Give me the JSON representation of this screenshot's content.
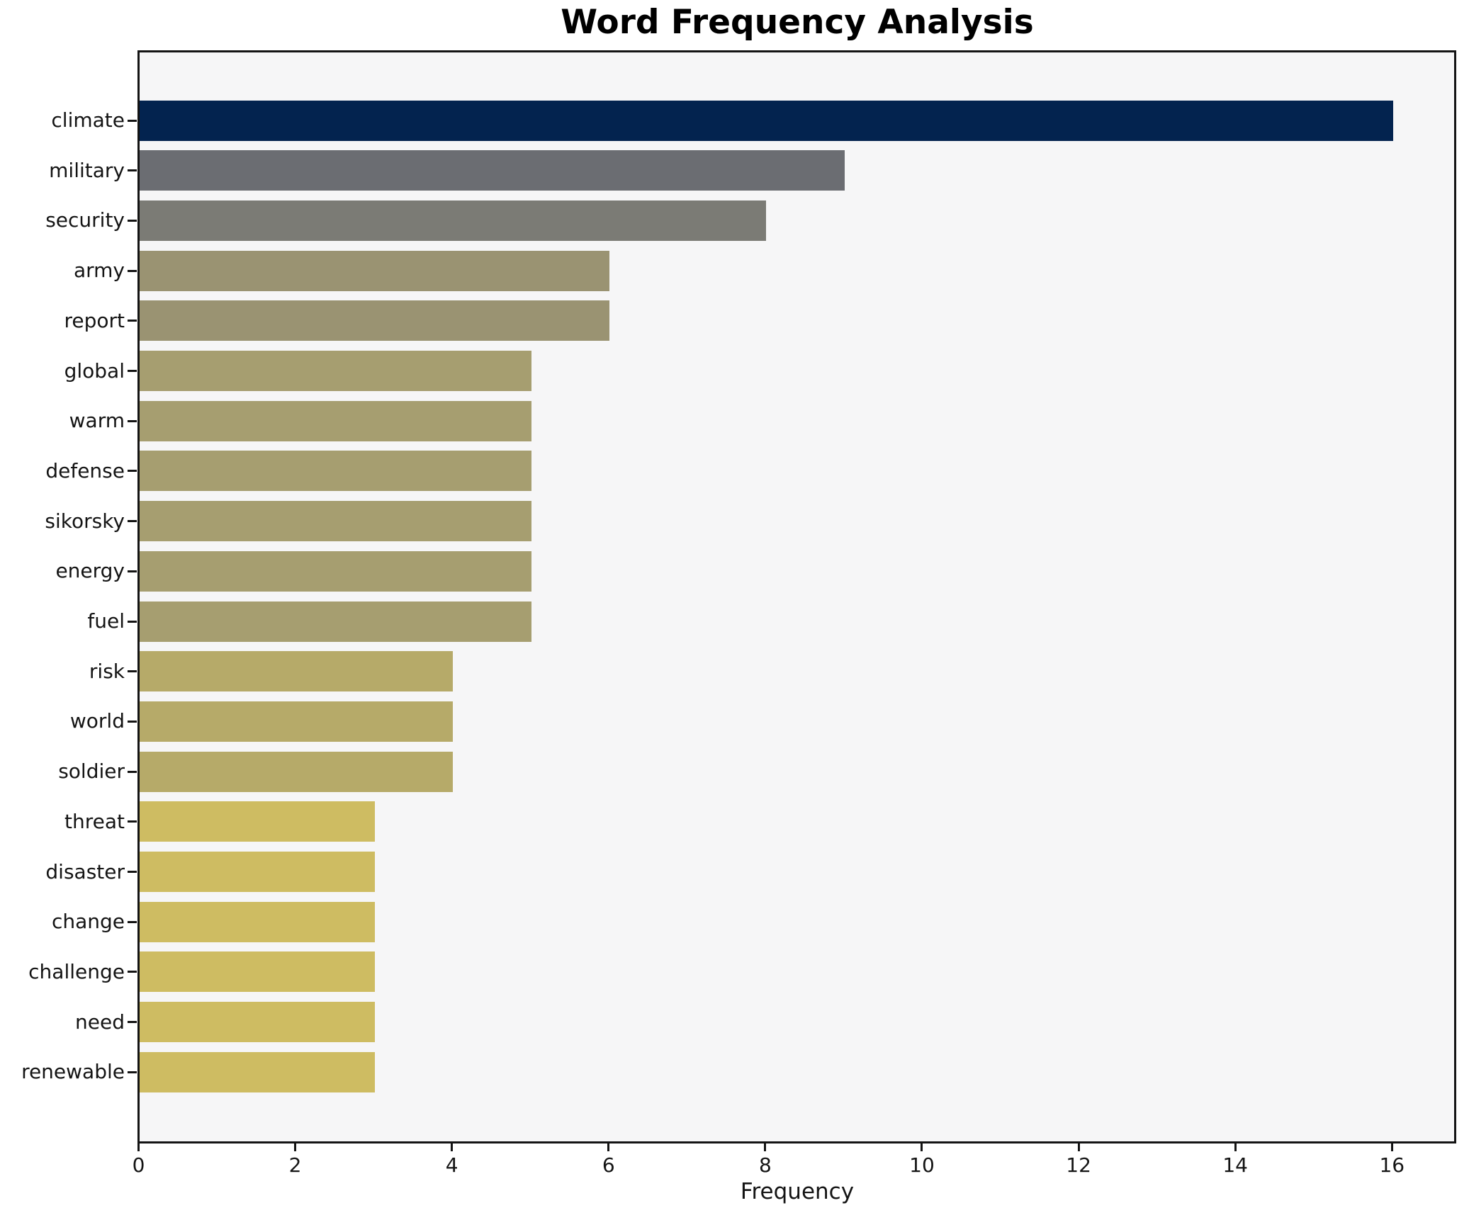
{
  "figure": {
    "background": "#ffffff",
    "plot_background": "#f6f6f7",
    "spine_color": "#141414",
    "text_color": "#141414"
  },
  "chart_data": {
    "type": "bar",
    "orientation": "horizontal",
    "title": "Word Frequency Analysis",
    "xlabel": "Frequency",
    "ylabel": "",
    "xlim": [
      0,
      16.78
    ],
    "x_ticks": [
      0,
      2,
      4,
      6,
      8,
      10,
      12,
      14,
      16
    ],
    "grid": false,
    "legend": "none",
    "categories": [
      "climate",
      "military",
      "security",
      "army",
      "report",
      "global",
      "warm",
      "defense",
      "sikorsky",
      "energy",
      "fuel",
      "risk",
      "world",
      "soldier",
      "threat",
      "disaster",
      "change",
      "challenge",
      "need",
      "renewable"
    ],
    "values": [
      16,
      9,
      8,
      6,
      6,
      5,
      5,
      5,
      5,
      5,
      5,
      4,
      4,
      4,
      3,
      3,
      3,
      3,
      3,
      3
    ],
    "bar_colors": [
      "#03234f",
      "#6b6d72",
      "#7b7b75",
      "#9a9372",
      "#9a9372",
      "#a69e70",
      "#a69e70",
      "#a69e70",
      "#a69e70",
      "#a69e70",
      "#a69e70",
      "#b6aa69",
      "#b6aa69",
      "#b6aa69",
      "#cebc62",
      "#cebc62",
      "#cebc62",
      "#cebc62",
      "#cebc62",
      "#cebc62"
    ]
  }
}
